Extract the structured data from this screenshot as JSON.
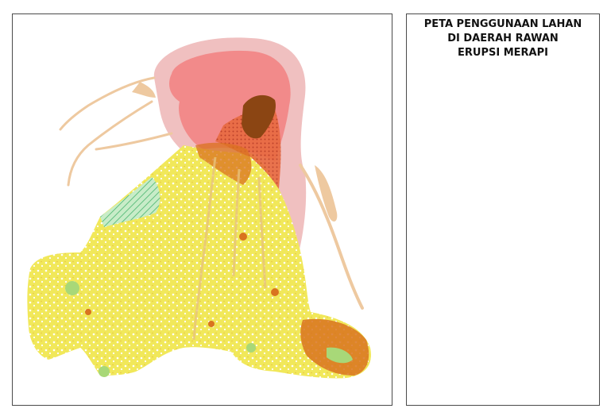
{
  "map": {
    "title_lines": [
      "PETA PENGGUNAAN LAHAN",
      "DI DAERAH RAWAN",
      "ERUPSI MERAPI"
    ],
    "colors": {
      "hazard_outer": "#f0c0c0",
      "hazard_inner": "#f28a8a",
      "crater": "#8b4513",
      "lava_red": "#e0502a",
      "lava_orange": "#d9731f",
      "river_flow": "#eec9a0",
      "cropland": "#f1e85a",
      "forest_green": "#a8d878",
      "plantation_hatch": "#7dcf9f",
      "frame": "#4a4a4a"
    }
  }
}
